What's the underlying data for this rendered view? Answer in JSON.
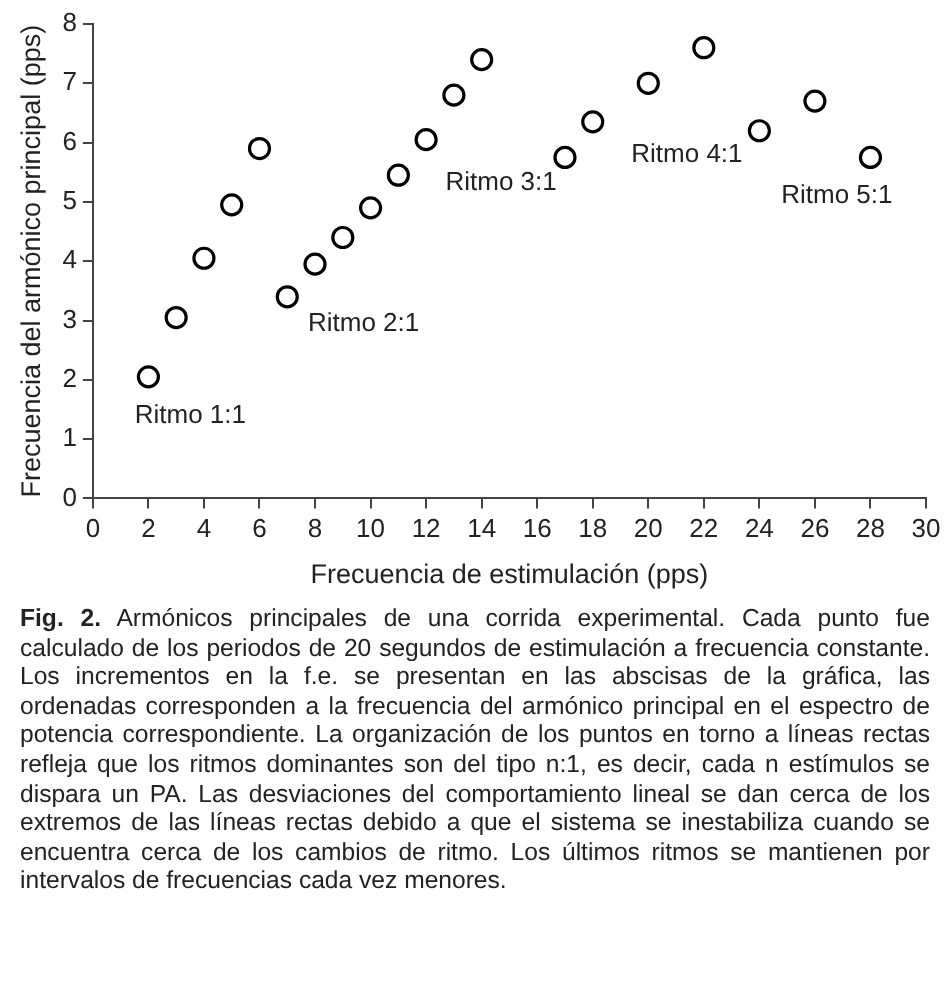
{
  "chart_data": {
    "type": "scatter",
    "xlabel": "Frecuencia de estimulación (pps)",
    "ylabel": "Frecuencia del armónico principal (pps)",
    "x": [
      2,
      3,
      4,
      5,
      6,
      7,
      8,
      9,
      10,
      11,
      12,
      13,
      14,
      17,
      18,
      20,
      22,
      24,
      26,
      28
    ],
    "series": [
      {
        "color": "#000000",
        "values": [
          2.05,
          3.05,
          4.05,
          4.95,
          5.9,
          3.4,
          3.95,
          4.4,
          4.9,
          5.45,
          6.05,
          6.8,
          7.4,
          5.75,
          6.35,
          7.0,
          7.6,
          6.2,
          6.7,
          5.75
        ]
      }
    ],
    "marker": "circle",
    "xlim": [
      0,
      30
    ],
    "xticks": [
      0,
      2,
      4,
      6,
      8,
      10,
      12,
      14,
      16,
      18,
      20,
      22,
      24,
      26,
      28,
      30
    ],
    "ylim": [
      0,
      8
    ],
    "yticks": [
      0,
      1,
      2,
      3,
      4,
      5,
      6,
      7,
      8
    ],
    "grid": false,
    "legend": false,
    "annotations": [
      "Ritmo 1:1",
      "Ritmo 2:1",
      "Ritmo 3:1",
      "Ritmo 4:1",
      "Ritmo 5:1",
      "Fig. 2.",
      "Armónicos principales de una corrida experimental. Cada punto fue calculado de los periodos de 20 segundos de estimulación a frecuencia constante. Los incrementos en la f.e. se presentan en las abscisas de la gráfica, las ordenadas corresponden a la frecuencia del armónico principal en el espectro de potencia correspondiente. La organización de los puntos en torno a líneas rectas refleja que los ritmos dominantes son del tipo n:1, es decir, cada n estímulos se dispara un PA. Las desviaciones del comportamiento lineal se dan cerca de los extremos de las líneas rectas debido a que el sistema se inestabiliza cuando se encuentra cerca de los cambios de ritmo. Los últimos ritmos se mantienen por intervalos de frecuencias cada vez menores."
    ]
  }
}
